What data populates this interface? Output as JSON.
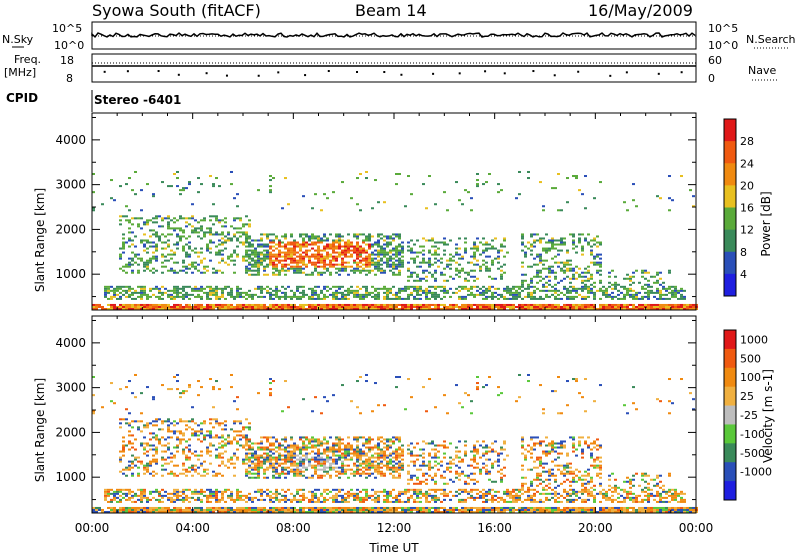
{
  "header": {
    "station": "Syowa South (fitACF)",
    "beam": "Beam 14",
    "date": "16/May/2009"
  },
  "top_panels": {
    "nsky_label": "N.Sky",
    "nsky_ticks": [
      "10^5",
      "10^0"
    ],
    "nsearch_label": "N.Search",
    "nsearch_ticks": [
      "10^5",
      "10^0"
    ],
    "freq_label_1": "Freq.",
    "freq_label_2": "[MHz]",
    "freq_ticks": [
      "18",
      "8"
    ],
    "nave_label": "Nave",
    "nave_ticks": [
      "60",
      "0"
    ],
    "cpid_label": "CPID",
    "cpid_value": "Stereo -6401"
  },
  "colors": {
    "power_scale": [
      "#1f1fe0",
      "#2a4fb8",
      "#3a8a5a",
      "#5aaa3a",
      "#e8c020",
      "#f08a10",
      "#f05a10",
      "#e01818"
    ],
    "velocity_scale": [
      "#e01818",
      "#f05a10",
      "#f08a10",
      "#f0b040",
      "#bdbdbd",
      "#5ac83a",
      "#3a8a5a",
      "#2a4fb8",
      "#1f1fe0"
    ]
  },
  "chart_data": [
    {
      "type": "heatmap",
      "title": "Power",
      "xlabel": "Time UT",
      "ylabel": "Slant Range [km]",
      "x_ticks": [
        "00:00",
        "04:00",
        "08:00",
        "12:00",
        "16:00",
        "20:00",
        "00:00"
      ],
      "y_ticks": [
        "1000",
        "2000",
        "3000",
        "4000"
      ],
      "ylim": [
        200,
        4600
      ],
      "xlim_hours": [
        0,
        24
      ],
      "colorbar_label": "Power [dB]",
      "colorbar_ticks": [
        "4",
        "8",
        "12",
        "16",
        "20",
        "24",
        "28"
      ],
      "colorbar_range": [
        0,
        30
      ]
    },
    {
      "type": "heatmap",
      "title": "Velocity",
      "xlabel": "Time UT",
      "ylabel": "Slant Range [km]",
      "x_ticks": [
        "00:00",
        "04:00",
        "08:00",
        "12:00",
        "16:00",
        "20:00",
        "00:00"
      ],
      "y_ticks": [
        "1000",
        "2000",
        "3000",
        "4000"
      ],
      "ylim": [
        200,
        4600
      ],
      "xlim_hours": [
        0,
        24
      ],
      "colorbar_label": "Velocity [m s-1]",
      "colorbar_ticks": [
        "1000",
        "500",
        "100",
        "25",
        "-25",
        "-100",
        "-500",
        "-1000"
      ]
    }
  ]
}
